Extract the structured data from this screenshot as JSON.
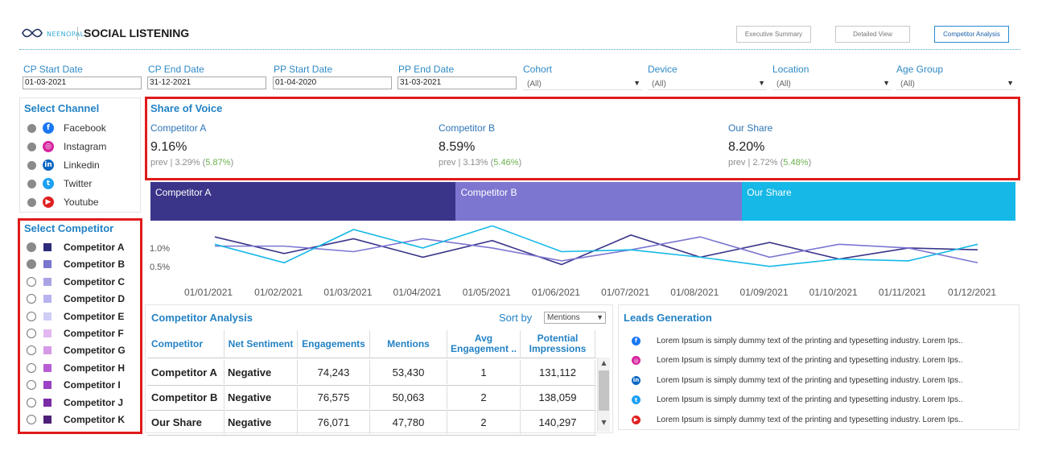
{
  "header": {
    "brand_small": "NEENOPAL",
    "title": "SOCIAL LISTENING",
    "nav": [
      "Executive Summary",
      "Detailed View",
      "Competitor Analysis"
    ]
  },
  "filters": {
    "cp_start": {
      "label": "CP Start Date",
      "value": "01-03-2021"
    },
    "cp_end": {
      "label": "CP End Date",
      "value": "31-12-2021"
    },
    "pp_start": {
      "label": "PP Start Date",
      "value": "01-04-2020"
    },
    "pp_end": {
      "label": "PP End Date",
      "value": "31-03-2021"
    },
    "cohort": {
      "label": "Cohort",
      "value": "(All)"
    },
    "device": {
      "label": "Device",
      "value": "(All)"
    },
    "location": {
      "label": "Location",
      "value": "(All)"
    },
    "age_group": {
      "label": "Age Group",
      "value": "(All)"
    }
  },
  "channels": {
    "title": "Select Channel",
    "items": [
      {
        "label": "Facebook",
        "icon": "facebook-icon",
        "color": "#1877f2",
        "glyph": "f"
      },
      {
        "label": "Instagram",
        "icon": "instagram-icon",
        "color": "#d6249f",
        "glyph": "◎"
      },
      {
        "label": "Linkedin",
        "icon": "linkedin-icon",
        "color": "#0a66c2",
        "glyph": "in"
      },
      {
        "label": "Twitter",
        "icon": "twitter-icon",
        "color": "#1da1f2",
        "glyph": "t"
      },
      {
        "label": "Youtube",
        "icon": "youtube-icon",
        "color": "#e02020",
        "glyph": "▶"
      }
    ]
  },
  "competitors": {
    "title": "Select Competitor",
    "items": [
      {
        "label": "Competitor A",
        "color": "#2e2a7a",
        "selected": true
      },
      {
        "label": "Competitor B",
        "color": "#7b74d0",
        "selected": true
      },
      {
        "label": "Competitor C",
        "color": "#a9a3e6",
        "selected": false
      },
      {
        "label": "Competitor D",
        "color": "#b7b3f0",
        "selected": false
      },
      {
        "label": "Competitor E",
        "color": "#cfcdf5",
        "selected": false
      },
      {
        "label": "Competitor F",
        "color": "#e3b7ef",
        "selected": false
      },
      {
        "label": "Competitor G",
        "color": "#d59ae8",
        "selected": false
      },
      {
        "label": "Competitor H",
        "color": "#b65fd4",
        "selected": false
      },
      {
        "label": "Competitor I",
        "color": "#9b42c5",
        "selected": false
      },
      {
        "label": "Competitor J",
        "color": "#7a2ba6",
        "selected": false
      },
      {
        "label": "Competitor K",
        "color": "#4e1f78",
        "selected": false
      }
    ]
  },
  "sov": {
    "title": "Share of Voice",
    "cards": [
      {
        "name": "Competitor A",
        "value": "9.16%",
        "prev_prefix": "prev | 3.29% (",
        "prev_pct": "5.87%",
        "prev_suffix": ")"
      },
      {
        "name": "Competitor B",
        "value": "8.59%",
        "prev_prefix": "prev | 3.13% (",
        "prev_pct": "5.46%",
        "prev_suffix": ")"
      },
      {
        "name": "Our Share",
        "value": "8.20%",
        "prev_prefix": "prev | 2.72% (",
        "prev_pct": "5.48%",
        "prev_suffix": ")"
      }
    ],
    "bar": [
      {
        "label": "Competitor A",
        "share": 9.16,
        "color": "#3a3589"
      },
      {
        "label": "Competitor B",
        "share": 8.59,
        "color": "#7c76d1"
      },
      {
        "label": "Our Share",
        "share": 8.2,
        "color": "#15b8e6"
      }
    ]
  },
  "chart_data": {
    "type": "line",
    "x": [
      "01/01/2021",
      "01/02/2021",
      "01/03/2021",
      "01/04/2021",
      "01/05/2021",
      "01/06/2021",
      "01/07/2021",
      "01/08/2021",
      "01/09/2021",
      "01/10/2021",
      "01/11/2021",
      "01/12/2021"
    ],
    "yticks": [
      "1.0%",
      "0.5%"
    ],
    "yticks_values": [
      1.0,
      0.5
    ],
    "ylim": [
      0.3,
      1.5
    ],
    "series": [
      {
        "color": "#3a3589",
        "values": [
          1.3,
          0.85,
          1.25,
          0.75,
          1.2,
          0.55,
          1.35,
          0.75,
          1.15,
          0.7,
          1.0,
          0.95
        ]
      },
      {
        "color": "#7c76d1",
        "values": [
          1.05,
          1.05,
          0.9,
          1.25,
          1.0,
          0.65,
          0.95,
          1.3,
          0.75,
          1.1,
          1.0,
          0.6
        ]
      },
      {
        "color": "#15b8e6",
        "values": [
          1.1,
          0.6,
          1.5,
          1.0,
          1.6,
          0.9,
          0.95,
          0.75,
          0.5,
          0.7,
          0.65,
          1.1
        ]
      }
    ]
  },
  "competitor_analysis": {
    "title": "Competitor Analysis",
    "sort_label": "Sort by",
    "sort_value": "Mentions",
    "columns": [
      "Competitor",
      "Net Sentiment",
      "Engagements",
      "Mentions",
      "Avg Engagement ..",
      "Potential Impressions"
    ],
    "rows": [
      [
        "Competitor A",
        "Negative",
        "74,243",
        "53,430",
        "1",
        "131,112"
      ],
      [
        "Competitor B",
        "Negative",
        "76,575",
        "50,063",
        "2",
        "138,059"
      ],
      [
        "Our Share",
        "Negative",
        "76,071",
        "47,780",
        "2",
        "140,297"
      ]
    ]
  },
  "leads": {
    "title": "Leads Generation",
    "items": [
      {
        "icon": "facebook-icon",
        "color": "#1877f2",
        "glyph": "f",
        "text": "Lorem Ipsum is simply dummy text of the printing and typesetting industry. Lorem Ips.."
      },
      {
        "icon": "instagram-icon",
        "color": "#d6249f",
        "glyph": "◎",
        "text": "Lorem Ipsum is simply dummy text of the printing and typesetting industry. Lorem Ips.."
      },
      {
        "icon": "linkedin-icon",
        "color": "#0a66c2",
        "glyph": "in",
        "text": "Lorem Ipsum is simply dummy text of the printing and typesetting industry. Lorem Ips.."
      },
      {
        "icon": "twitter-icon",
        "color": "#1da1f2",
        "glyph": "t",
        "text": "Lorem Ipsum is simply dummy text of the printing and typesetting industry. Lorem Ips.."
      },
      {
        "icon": "youtube-icon",
        "color": "#e02020",
        "glyph": "▶",
        "text": "Lorem Ipsum is simply dummy text of the printing and typesetting industry. Lorem Ips.."
      }
    ]
  }
}
